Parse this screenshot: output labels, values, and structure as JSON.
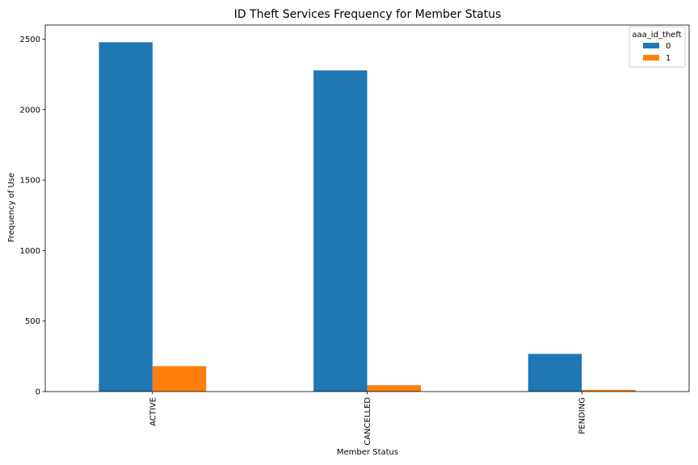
{
  "chart_data": {
    "type": "bar",
    "title": "ID Theft Services Frequency for Member Status",
    "xlabel": "Member Status",
    "ylabel": "Frequency of Use",
    "categories": [
      "ACTIVE",
      "CANCELLED",
      "PENDING"
    ],
    "series": [
      {
        "name": "0",
        "values": [
          2478,
          2278,
          267
        ],
        "color": "#1f77b4"
      },
      {
        "name": "1",
        "values": [
          180,
          45,
          12
        ],
        "color": "#ff7f0e"
      }
    ],
    "ylim": [
      0,
      2600
    ],
    "yticks": [
      0,
      500,
      1000,
      1500,
      2000,
      2500
    ],
    "legend": {
      "title": "aaa_id_theft",
      "position": "top-right"
    },
    "grid": false
  }
}
